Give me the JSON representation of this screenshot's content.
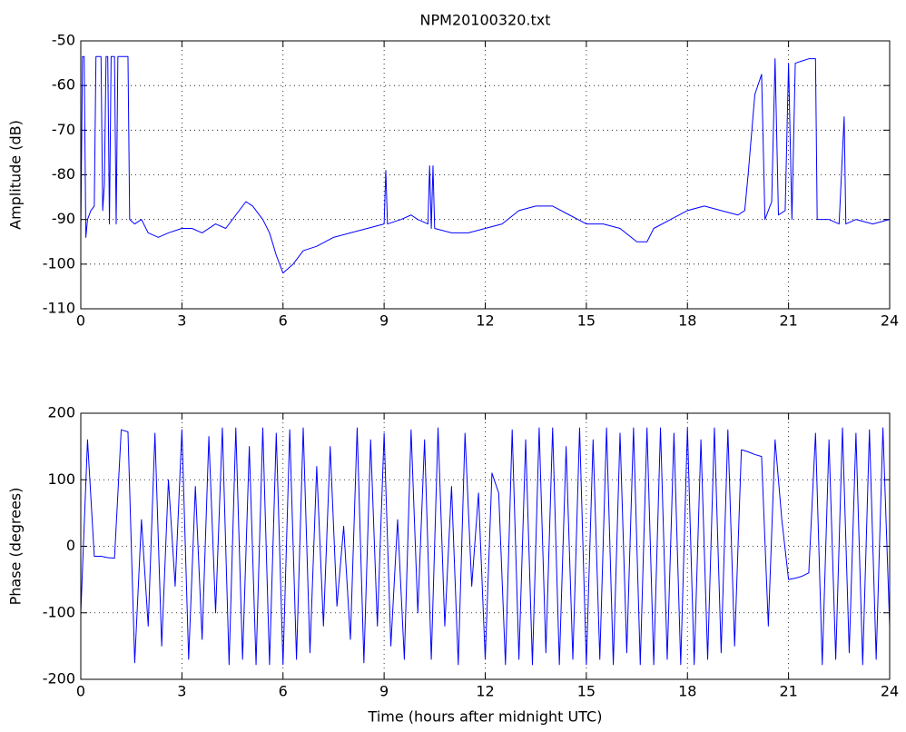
{
  "chart_data": [
    {
      "type": "line",
      "title": "NPM20100320.txt",
      "ylabel": "Amplitude (dB)",
      "grid": true,
      "xlim": [
        0,
        24
      ],
      "xticks": [
        0,
        3,
        6,
        9,
        12,
        15,
        18,
        21,
        24
      ],
      "ylim": [
        -110,
        -50
      ],
      "yticks": [
        -110,
        -100,
        -90,
        -80,
        -70,
        -60,
        -50
      ],
      "color": "#0000ff",
      "x": [
        0,
        0.05,
        0.1,
        0.15,
        0.2,
        0.3,
        0.4,
        0.45,
        0.6,
        0.65,
        0.7,
        0.75,
        0.8,
        0.85,
        0.9,
        1.0,
        1.05,
        1.1,
        1.4,
        1.45,
        1.6,
        1.8,
        2.0,
        2.3,
        2.6,
        3.0,
        3.3,
        3.6,
        4.0,
        4.3,
        4.6,
        4.9,
        5.1,
        5.4,
        5.6,
        5.8,
        6.0,
        6.3,
        6.6,
        7.0,
        7.5,
        8.0,
        8.5,
        9.0,
        9.05,
        9.1,
        9.5,
        9.8,
        10.0,
        10.3,
        10.35,
        10.4,
        10.45,
        10.5,
        11.0,
        11.5,
        12.0,
        12.5,
        13.0,
        13.5,
        14.0,
        14.5,
        15.0,
        15.5,
        16.0,
        16.5,
        16.8,
        17.0,
        17.5,
        18.0,
        18.5,
        19.0,
        19.5,
        19.7,
        19.8,
        20.0,
        20.2,
        20.3,
        20.5,
        20.6,
        20.7,
        20.9,
        21.0,
        21.1,
        21.2,
        21.4,
        21.6,
        21.8,
        21.85,
        22.2,
        22.5,
        22.65,
        22.7,
        23.0,
        23.5,
        24.0
      ],
      "values": [
        -93,
        -53.5,
        -53.5,
        -94,
        -90,
        -88,
        -87,
        -53.5,
        -53.5,
        -88,
        -82,
        -53.5,
        -53.5,
        -91,
        -53.5,
        -53.5,
        -91,
        -53.5,
        -53.5,
        -90,
        -91,
        -90,
        -93,
        -94,
        -93,
        -92,
        -92,
        -93,
        -91,
        -92,
        -89,
        -86,
        -87,
        -90,
        -93,
        -98,
        -102,
        -100,
        -97,
        -96,
        -94,
        -93,
        -92,
        -91,
        -79,
        -91,
        -90,
        -89,
        -90,
        -91,
        -78,
        -92,
        -78,
        -92,
        -93,
        -93,
        -92,
        -91,
        -88,
        -87,
        -87,
        -89,
        -91,
        -91,
        -92,
        -95,
        -95,
        -92,
        -90,
        -88,
        -87,
        -88,
        -89,
        -88,
        -80,
        -62,
        -57.5,
        -90,
        -86,
        -54,
        -89,
        -88,
        -55,
        -90,
        -55,
        -54.5,
        -54,
        -54,
        -90,
        -90,
        -91,
        -67,
        -91,
        -90,
        -91,
        -90
      ]
    },
    {
      "type": "line",
      "xlabel": "Time (hours after midnight UTC)",
      "ylabel": "Phase (degrees)",
      "grid": true,
      "xlim": [
        0,
        24
      ],
      "xticks": [
        0,
        3,
        6,
        9,
        12,
        15,
        18,
        21,
        24
      ],
      "ylim": [
        -200,
        200
      ],
      "yticks": [
        -200,
        -100,
        0,
        100,
        200
      ],
      "color": "#0000ff",
      "x": [
        0,
        0.2,
        0.4,
        0.6,
        0.8,
        1.0,
        1.2,
        1.4,
        1.6,
        1.8,
        2.0,
        2.2,
        2.4,
        2.6,
        2.8,
        3.0,
        3.2,
        3.4,
        3.6,
        3.8,
        4.0,
        4.2,
        4.4,
        4.6,
        4.8,
        5.0,
        5.2,
        5.4,
        5.6,
        5.8,
        6.0,
        6.2,
        6.4,
        6.6,
        6.8,
        7.0,
        7.2,
        7.4,
        7.6,
        7.8,
        8.0,
        8.2,
        8.4,
        8.6,
        8.8,
        9.0,
        9.2,
        9.4,
        9.6,
        9.8,
        10.0,
        10.2,
        10.4,
        10.6,
        10.8,
        11.0,
        11.2,
        11.4,
        11.6,
        11.8,
        12.0,
        12.2,
        12.4,
        12.6,
        12.8,
        13.0,
        13.2,
        13.4,
        13.6,
        13.8,
        14.0,
        14.2,
        14.4,
        14.6,
        14.8,
        15.0,
        15.2,
        15.4,
        15.6,
        15.8,
        16.0,
        16.2,
        16.4,
        16.6,
        16.8,
        17.0,
        17.2,
        17.4,
        17.6,
        17.8,
        18.0,
        18.2,
        18.4,
        18.6,
        18.8,
        19.0,
        19.2,
        19.4,
        19.6,
        19.8,
        20.0,
        20.2,
        20.4,
        20.6,
        20.8,
        21.0,
        21.2,
        21.4,
        21.6,
        21.8,
        22.0,
        22.2,
        22.4,
        22.6,
        22.8,
        23.0,
        23.2,
        23.4,
        23.6,
        23.8,
        24.0
      ],
      "values": [
        -100,
        160,
        -15,
        -15,
        -17,
        -18,
        175,
        172,
        -175,
        40,
        -120,
        170,
        -150,
        100,
        -60,
        175,
        -170,
        90,
        -140,
        165,
        -100,
        178,
        -178,
        178,
        -170,
        150,
        -178,
        178,
        -178,
        170,
        -178,
        175,
        -170,
        178,
        -160,
        120,
        -120,
        150,
        -90,
        30,
        -140,
        178,
        -175,
        160,
        -120,
        170,
        -150,
        40,
        -170,
        175,
        -100,
        160,
        -170,
        178,
        -120,
        90,
        -178,
        170,
        -60,
        80,
        -170,
        110,
        80,
        -178,
        175,
        -170,
        160,
        -178,
        178,
        -160,
        178,
        -178,
        150,
        -170,
        178,
        -178,
        160,
        -170,
        178,
        -178,
        170,
        -160,
        178,
        -178,
        178,
        -178,
        178,
        -170,
        170,
        -178,
        178,
        -178,
        160,
        -170,
        178,
        -160,
        175,
        -150,
        145,
        142,
        138,
        135,
        -120,
        160,
        40,
        -50,
        -48,
        -45,
        -40,
        170,
        -178,
        160,
        -170,
        178,
        -160,
        170,
        -178,
        175,
        -170,
        178,
        -120
      ]
    }
  ]
}
